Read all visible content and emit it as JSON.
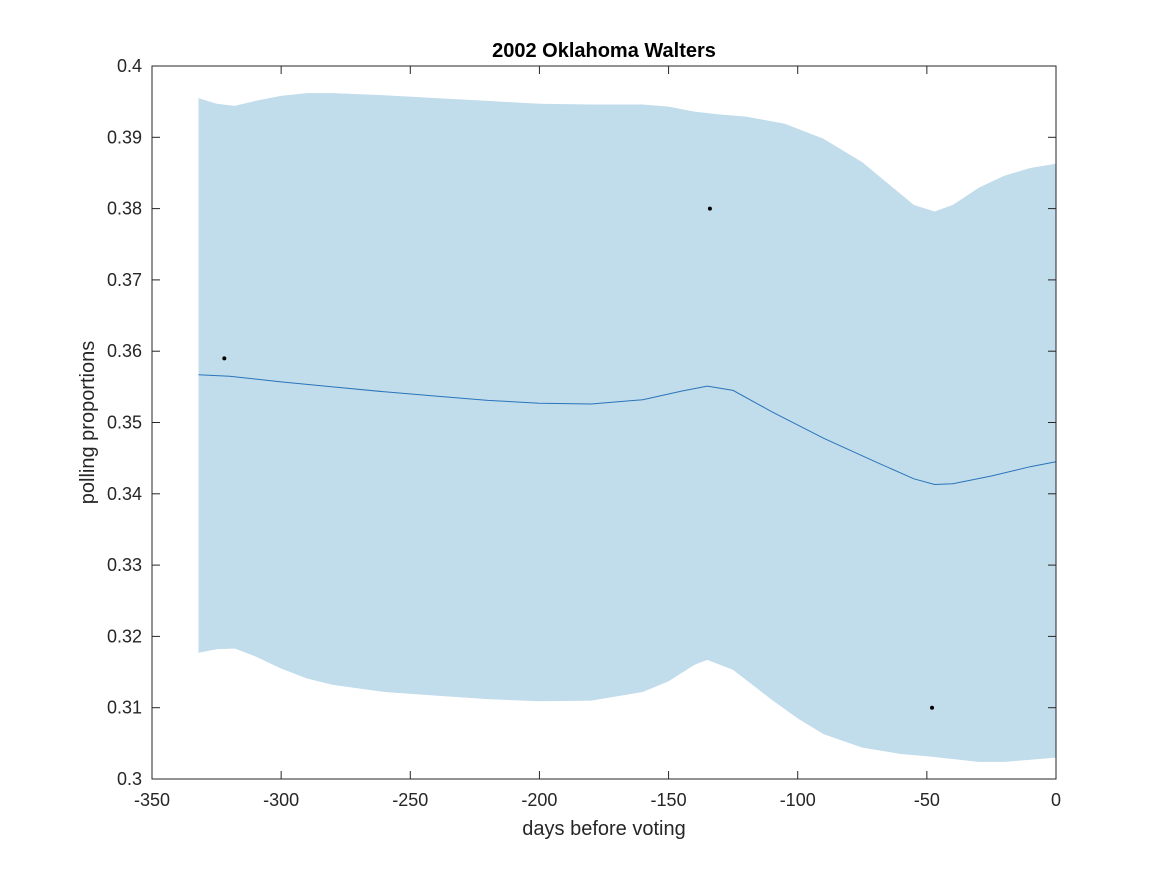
{
  "chart_data": {
    "type": "line",
    "title": "2002 Oklahoma Walters",
    "xlabel": "days before voting",
    "ylabel": "polling proportions",
    "xlim": [
      -350,
      0
    ],
    "ylim": [
      0.3,
      0.4
    ],
    "xticks": [
      -350,
      -300,
      -250,
      -200,
      -150,
      -100,
      -50,
      0
    ],
    "yticks": [
      0.3,
      0.31,
      0.32,
      0.33,
      0.34,
      0.35,
      0.36,
      0.37,
      0.38,
      0.39,
      0.4
    ],
    "xtick_labels": [
      "-350",
      "-300",
      "-250",
      "-200",
      "-150",
      "-100",
      "-50",
      "0"
    ],
    "ytick_labels": [
      "0.3",
      "0.31",
      "0.32",
      "0.33",
      "0.34",
      "0.35",
      "0.36",
      "0.37",
      "0.38",
      "0.39",
      "0.4"
    ],
    "grid": false,
    "colors": {
      "band": "#c1dcea",
      "line": "#2a74bb",
      "points": "#000000",
      "axes": "#262626"
    },
    "mean_line": {
      "x": [
        -332,
        -320,
        -300,
        -280,
        -260,
        -240,
        -220,
        -200,
        -180,
        -160,
        -145,
        -135,
        -125,
        -110,
        -90,
        -70,
        -55,
        -47,
        -40,
        -25,
        -10,
        0
      ],
      "y": [
        0.3567,
        0.3565,
        0.3557,
        0.355,
        0.3543,
        0.3537,
        0.3531,
        0.3527,
        0.3526,
        0.3532,
        0.3544,
        0.3551,
        0.3545,
        0.3515,
        0.3478,
        0.3445,
        0.3421,
        0.3413,
        0.3414,
        0.3425,
        0.3438,
        0.3445
      ]
    },
    "band_upper": {
      "x": [
        -332,
        -325,
        -318,
        -310,
        -300,
        -290,
        -280,
        -260,
        -240,
        -220,
        -200,
        -180,
        -160,
        -150,
        -140,
        -130,
        -120,
        -105,
        -90,
        -75,
        -65,
        -55,
        -47,
        -40,
        -30,
        -20,
        -10,
        0
      ],
      "y": [
        0.3955,
        0.3947,
        0.3944,
        0.3951,
        0.3958,
        0.3962,
        0.3962,
        0.3959,
        0.3955,
        0.3951,
        0.3947,
        0.3946,
        0.3946,
        0.3943,
        0.3936,
        0.3932,
        0.3929,
        0.3919,
        0.3898,
        0.3865,
        0.3835,
        0.3805,
        0.3796,
        0.3805,
        0.3829,
        0.3846,
        0.3857,
        0.3863
      ]
    },
    "band_lower": {
      "x": [
        -332,
        -325,
        -318,
        -310,
        -300,
        -290,
        -280,
        -260,
        -240,
        -220,
        -200,
        -180,
        -160,
        -150,
        -140,
        -135,
        -125,
        -110,
        -100,
        -90,
        -75,
        -60,
        -50,
        -40,
        -30,
        -20,
        -10,
        0
      ],
      "y": [
        0.3177,
        0.3182,
        0.3183,
        0.3172,
        0.3155,
        0.3141,
        0.3132,
        0.3122,
        0.3117,
        0.3112,
        0.3109,
        0.311,
        0.3122,
        0.3137,
        0.316,
        0.3167,
        0.3153,
        0.3111,
        0.3085,
        0.3063,
        0.3044,
        0.3035,
        0.3032,
        0.3028,
        0.3024,
        0.3024,
        0.3027,
        0.303
      ]
    },
    "observations": {
      "x": [
        -322,
        -134,
        -48
      ],
      "y": [
        0.359,
        0.38,
        0.31
      ]
    }
  }
}
